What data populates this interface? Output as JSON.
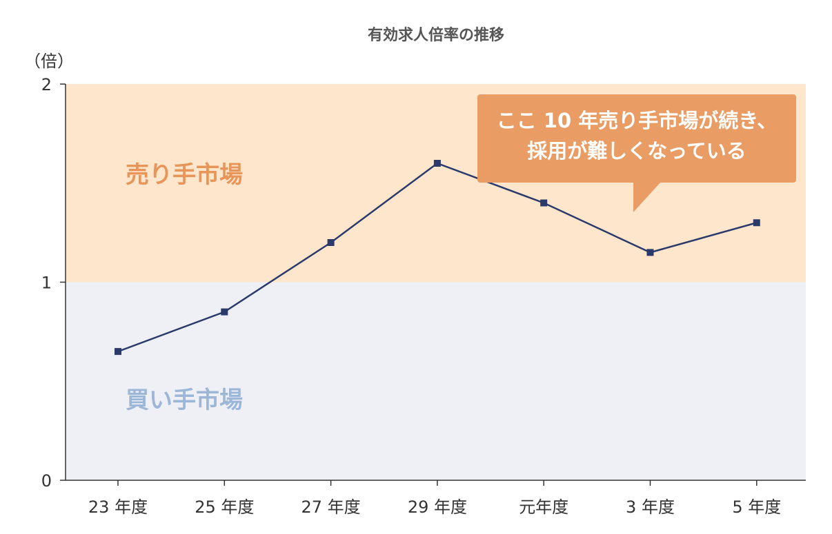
{
  "chart_data": {
    "type": "line",
    "title": "有効求人倍率の推移",
    "ylabel": "（倍）",
    "xlabel": "",
    "categories": [
      "23 年度",
      "25 年度",
      "27 年度",
      "29 年度",
      "元年度",
      "3 年度",
      "5 年度"
    ],
    "series": [
      {
        "values": [
          0.65,
          0.85,
          1.2,
          1.6,
          1.4,
          1.15,
          1.3
        ]
      }
    ],
    "ylim": [
      0,
      2
    ],
    "yticks": [
      "0",
      "1",
      "2"
    ],
    "grid": false,
    "zones": [
      {
        "label": "売り手市場",
        "from": 1,
        "to": 2
      },
      {
        "label": "買い手市場",
        "from": 0,
        "to": 1
      }
    ],
    "annotation": {
      "lines": [
        "ここ 10 年売り手市場が続き、",
        "採用が難しくなっている"
      ]
    }
  },
  "colors": {
    "sell_zone": "#fde6cc",
    "buy_zone": "#eff0f6",
    "sell_label": "#e8955a",
    "buy_label": "#9cb6d8",
    "line": "#2b3a6b",
    "axis": "#333333",
    "callout": "#e99c63"
  }
}
